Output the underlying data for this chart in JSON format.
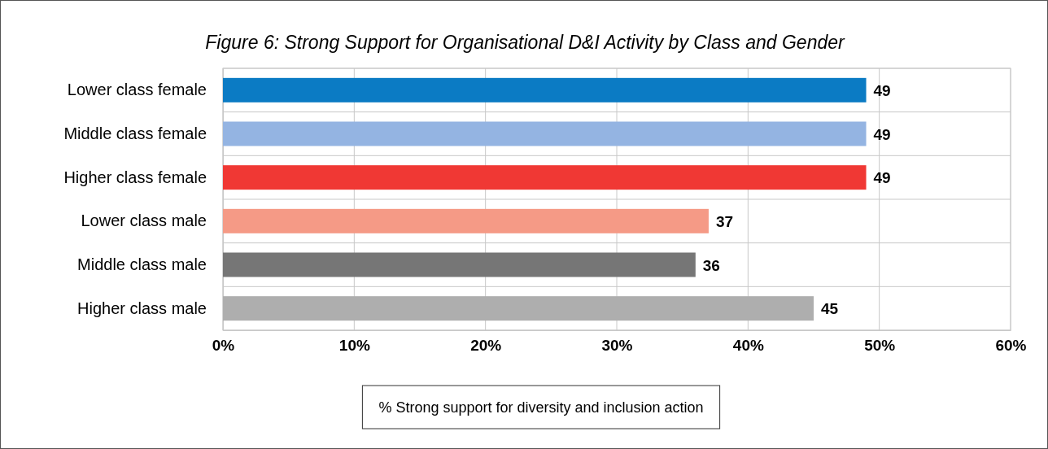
{
  "chart_data": {
    "type": "bar",
    "orientation": "horizontal",
    "title": "Figure 6: Strong Support for Organisational D&I Activity by Class and Gender",
    "categories": [
      "Lower class female",
      "Middle class female",
      "Higher class female",
      "Lower class male",
      "Middle class male",
      "Higher class male"
    ],
    "series": [
      {
        "name": "% Strong support for diversity and inclusion action",
        "values": [
          49,
          49,
          49,
          37,
          36,
          45
        ],
        "colors": [
          "#0b7bc4",
          "#94b4e2",
          "#f03834",
          "#f59a86",
          "#767676",
          "#aeaeae"
        ]
      }
    ],
    "xlim": [
      0,
      60
    ],
    "xticks": [
      {
        "value": 0,
        "label": "0%"
      },
      {
        "value": 10,
        "label": "10%"
      },
      {
        "value": 20,
        "label": "20%"
      },
      {
        "value": 30,
        "label": "30%"
      },
      {
        "value": 40,
        "label": "40%"
      },
      {
        "value": 50,
        "label": "50%"
      },
      {
        "value": 60,
        "label": "60%"
      }
    ],
    "grid": true,
    "data_labels": true,
    "legend": "bottom"
  }
}
